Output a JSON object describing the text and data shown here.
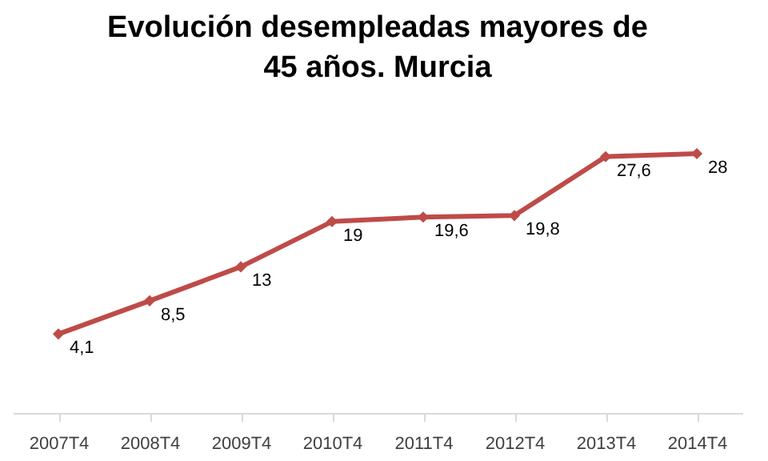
{
  "chart_data": {
    "type": "line",
    "title": "Evolución desempleadas mayores de 45 años. Murcia",
    "categories": [
      "2007T4",
      "2008T4",
      "2009T4",
      "2010T4",
      "2011T4",
      "2012T4",
      "2013T4",
      "2014T4"
    ],
    "series": [
      {
        "color": "#be4b48",
        "values": [
          4.1,
          8.5,
          13,
          19,
          19.6,
          19.8,
          27.6,
          28
        ],
        "value_labels": [
          "4,1",
          "8,5",
          "13",
          "19",
          "19,6",
          "19,8",
          "27,6",
          "28"
        ]
      }
    ],
    "marker": "diamond",
    "grid": false,
    "legend": false
  }
}
